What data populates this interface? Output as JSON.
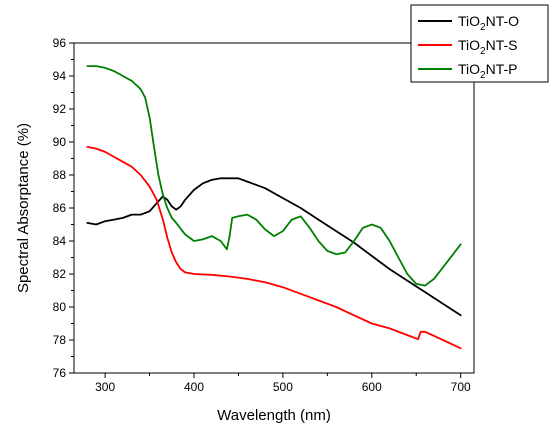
{
  "chart_data": {
    "type": "line",
    "xlabel": "Wavelength (nm)",
    "ylabel": "Spectral Absorptance (%)",
    "xlim": [
      265,
      715
    ],
    "ylim": [
      76,
      96
    ],
    "xticks": [
      300,
      400,
      500,
      600,
      700
    ],
    "yticks": [
      76,
      78,
      80,
      82,
      84,
      86,
      88,
      90,
      92,
      94,
      96
    ],
    "grid": false,
    "legend_position": "top-right",
    "series": [
      {
        "name_parts": [
          "TiO",
          "2",
          "NT-O"
        ],
        "color": "#000000",
        "points": [
          [
            280,
            85.1
          ],
          [
            290,
            85.0
          ],
          [
            300,
            85.2
          ],
          [
            310,
            85.3
          ],
          [
            320,
            85.4
          ],
          [
            330,
            85.6
          ],
          [
            340,
            85.6
          ],
          [
            350,
            85.8
          ],
          [
            358,
            86.3
          ],
          [
            365,
            86.7
          ],
          [
            370,
            86.5
          ],
          [
            375,
            86.1
          ],
          [
            380,
            85.9
          ],
          [
            385,
            86.1
          ],
          [
            390,
            86.5
          ],
          [
            400,
            87.1
          ],
          [
            410,
            87.5
          ],
          [
            420,
            87.7
          ],
          [
            430,
            87.8
          ],
          [
            440,
            87.8
          ],
          [
            450,
            87.8
          ],
          [
            460,
            87.6
          ],
          [
            480,
            87.2
          ],
          [
            500,
            86.6
          ],
          [
            520,
            86.0
          ],
          [
            540,
            85.3
          ],
          [
            560,
            84.6
          ],
          [
            580,
            83.9
          ],
          [
            600,
            83.1
          ],
          [
            620,
            82.3
          ],
          [
            640,
            81.6
          ],
          [
            660,
            80.9
          ],
          [
            680,
            80.2
          ],
          [
            700,
            79.5
          ]
        ]
      },
      {
        "name_parts": [
          "TiO",
          "2",
          "NT-S"
        ],
        "color": "#ff0000",
        "points": [
          [
            280,
            89.7
          ],
          [
            290,
            89.6
          ],
          [
            300,
            89.4
          ],
          [
            310,
            89.1
          ],
          [
            320,
            88.8
          ],
          [
            330,
            88.5
          ],
          [
            340,
            88.0
          ],
          [
            350,
            87.3
          ],
          [
            358,
            86.5
          ],
          [
            365,
            85.3
          ],
          [
            370,
            84.2
          ],
          [
            375,
            83.3
          ],
          [
            380,
            82.7
          ],
          [
            385,
            82.3
          ],
          [
            390,
            82.1
          ],
          [
            400,
            82.0
          ],
          [
            420,
            81.95
          ],
          [
            440,
            81.85
          ],
          [
            460,
            81.7
          ],
          [
            480,
            81.5
          ],
          [
            500,
            81.2
          ],
          [
            520,
            80.8
          ],
          [
            540,
            80.4
          ],
          [
            560,
            80.0
          ],
          [
            580,
            79.5
          ],
          [
            600,
            79.0
          ],
          [
            620,
            78.7
          ],
          [
            640,
            78.3
          ],
          [
            652,
            78.05
          ],
          [
            655,
            78.5
          ],
          [
            660,
            78.5
          ],
          [
            680,
            78.0
          ],
          [
            700,
            77.5
          ]
        ]
      },
      {
        "name_parts": [
          "TiO",
          "2",
          "NT-P"
        ],
        "color": "#008000",
        "points": [
          [
            280,
            94.6
          ],
          [
            290,
            94.6
          ],
          [
            300,
            94.5
          ],
          [
            310,
            94.3
          ],
          [
            320,
            94.0
          ],
          [
            330,
            93.7
          ],
          [
            340,
            93.2
          ],
          [
            345,
            92.7
          ],
          [
            350,
            91.5
          ],
          [
            355,
            89.7
          ],
          [
            360,
            88.0
          ],
          [
            365,
            86.8
          ],
          [
            370,
            86.0
          ],
          [
            375,
            85.4
          ],
          [
            380,
            85.1
          ],
          [
            390,
            84.4
          ],
          [
            400,
            84.0
          ],
          [
            410,
            84.1
          ],
          [
            420,
            84.3
          ],
          [
            430,
            84.0
          ],
          [
            437,
            83.5
          ],
          [
            440,
            84.3
          ],
          [
            443,
            85.4
          ],
          [
            450,
            85.5
          ],
          [
            460,
            85.6
          ],
          [
            470,
            85.3
          ],
          [
            480,
            84.7
          ],
          [
            490,
            84.3
          ],
          [
            500,
            84.6
          ],
          [
            510,
            85.3
          ],
          [
            520,
            85.5
          ],
          [
            530,
            84.8
          ],
          [
            540,
            84.0
          ],
          [
            550,
            83.4
          ],
          [
            560,
            83.2
          ],
          [
            570,
            83.3
          ],
          [
            580,
            84.0
          ],
          [
            590,
            84.8
          ],
          [
            600,
            85.0
          ],
          [
            610,
            84.8
          ],
          [
            620,
            84.0
          ],
          [
            630,
            83.0
          ],
          [
            640,
            82.0
          ],
          [
            650,
            81.4
          ],
          [
            660,
            81.3
          ],
          [
            670,
            81.7
          ],
          [
            680,
            82.4
          ],
          [
            690,
            83.1
          ],
          [
            700,
            83.8
          ]
        ]
      }
    ]
  }
}
